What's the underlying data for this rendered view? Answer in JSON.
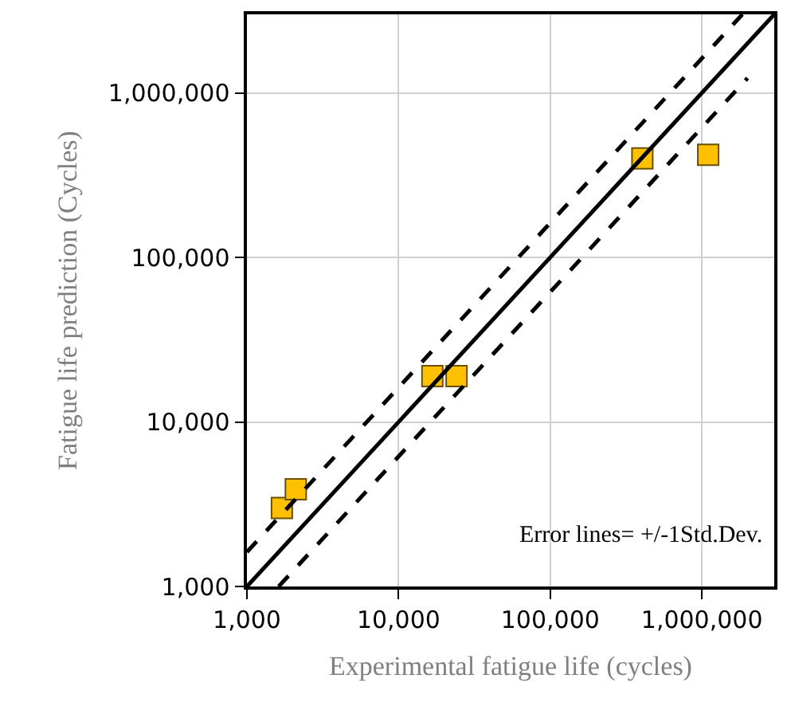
{
  "chart_data": {
    "type": "scatter",
    "xlabel": "Experimental fatigue life (cycles)",
    "ylabel": "Fatigue life prediction (Cycles)",
    "log": "xy",
    "xlim": [
      1000,
      3000000
    ],
    "ylim": [
      1000,
      3000000
    ],
    "xticks": [
      {
        "value": 1000,
        "label": "1,000"
      },
      {
        "value": 10000,
        "label": "10,000"
      },
      {
        "value": 100000,
        "label": "100,000"
      },
      {
        "value": 1000000,
        "label": "1,000,000"
      }
    ],
    "yticks": [
      {
        "value": 1000,
        "label": "1,000"
      },
      {
        "value": 10000,
        "label": "10,000"
      },
      {
        "value": 100000,
        "label": "100,000"
      },
      {
        "value": 1000000,
        "label": "1,000,000"
      }
    ],
    "grid": true,
    "annotations": [
      "Error lines= +/-1Std.Dev."
    ],
    "series": [
      {
        "color": "#ffc000",
        "marker": "square",
        "x": [
          1700,
          2100,
          16700,
          24100,
          405000,
          1100000
        ],
        "values": [
          3000,
          3900,
          19000,
          19000,
          400000,
          420000
        ]
      },
      {
        "type": "line",
        "color": "#000000",
        "line_style": "solid",
        "marker": "none",
        "x": [
          1000,
          3000000
        ],
        "values": [
          1000,
          3000000
        ]
      },
      {
        "type": "line",
        "color": "#000000",
        "line_style": "dashed",
        "marker": "none",
        "x": [
          1000,
          1850000
        ],
        "values": [
          1620,
          3000000
        ]
      },
      {
        "type": "line",
        "color": "#000000",
        "line_style": "dashed",
        "marker": "none",
        "x": [
          1620,
          2000000
        ],
        "values": [
          1000,
          1230000
        ]
      }
    ]
  }
}
